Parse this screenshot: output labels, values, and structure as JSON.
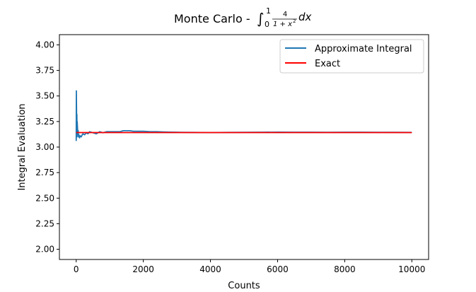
{
  "chart_data": {
    "type": "line",
    "title_prefix": "Monte Carlo - ",
    "title_math": {
      "lower_limit": "0",
      "upper_limit": "1",
      "numerator": "4",
      "denominator_text": "1 + x",
      "denominator_exponent": "2",
      "differential": "dx"
    },
    "xlabel": "Counts",
    "ylabel": "Integral Evaluation",
    "xlim": [
      -500,
      10500
    ],
    "ylim": [
      1.9,
      4.1
    ],
    "x_ticks": [
      0,
      2000,
      4000,
      6000,
      8000,
      10000
    ],
    "x_tick_labels": [
      "0",
      "2000",
      "4000",
      "6000",
      "8000",
      "10000"
    ],
    "y_ticks": [
      2.0,
      2.25,
      2.5,
      2.75,
      3.0,
      3.25,
      3.5,
      3.75,
      4.0
    ],
    "y_tick_labels": [
      "2.00",
      "2.25",
      "2.50",
      "2.75",
      "3.00",
      "3.25",
      "3.50",
      "3.75",
      "4.00"
    ],
    "grid": false,
    "legend_position": "top-right",
    "series": [
      {
        "name": "Approximate Integral",
        "color": "#1f77b4",
        "x": [
          1,
          5,
          10,
          15,
          20,
          25,
          30,
          40,
          50,
          60,
          70,
          80,
          100,
          120,
          150,
          180,
          200,
          250,
          300,
          350,
          400,
          500,
          600,
          700,
          800,
          900,
          1000,
          1100,
          1200,
          1300,
          1400,
          1500,
          1600,
          1700,
          1800,
          2000,
          2200,
          2400,
          2600,
          2800,
          3000,
          3500,
          4000,
          4500,
          5000,
          5500,
          6000,
          6500,
          7000,
          7500,
          8000,
          8500,
          9000,
          9500,
          10000
        ],
        "y": [
          3.06,
          3.55,
          3.38,
          3.2,
          3.32,
          3.1,
          3.25,
          3.18,
          3.12,
          3.16,
          3.1,
          3.12,
          3.09,
          3.11,
          3.1,
          3.12,
          3.13,
          3.12,
          3.14,
          3.13,
          3.15,
          3.14,
          3.13,
          3.15,
          3.14,
          3.15,
          3.15,
          3.15,
          3.15,
          3.15,
          3.16,
          3.16,
          3.16,
          3.155,
          3.155,
          3.155,
          3.15,
          3.15,
          3.148,
          3.146,
          3.145,
          3.143,
          3.142,
          3.143,
          3.144,
          3.145,
          3.146,
          3.145,
          3.145,
          3.144,
          3.145,
          3.145,
          3.144,
          3.144,
          3.143
        ]
      },
      {
        "name": "Exact",
        "color": "#ff0000",
        "x": [
          0,
          10000
        ],
        "y": [
          3.14159,
          3.14159
        ]
      }
    ]
  }
}
